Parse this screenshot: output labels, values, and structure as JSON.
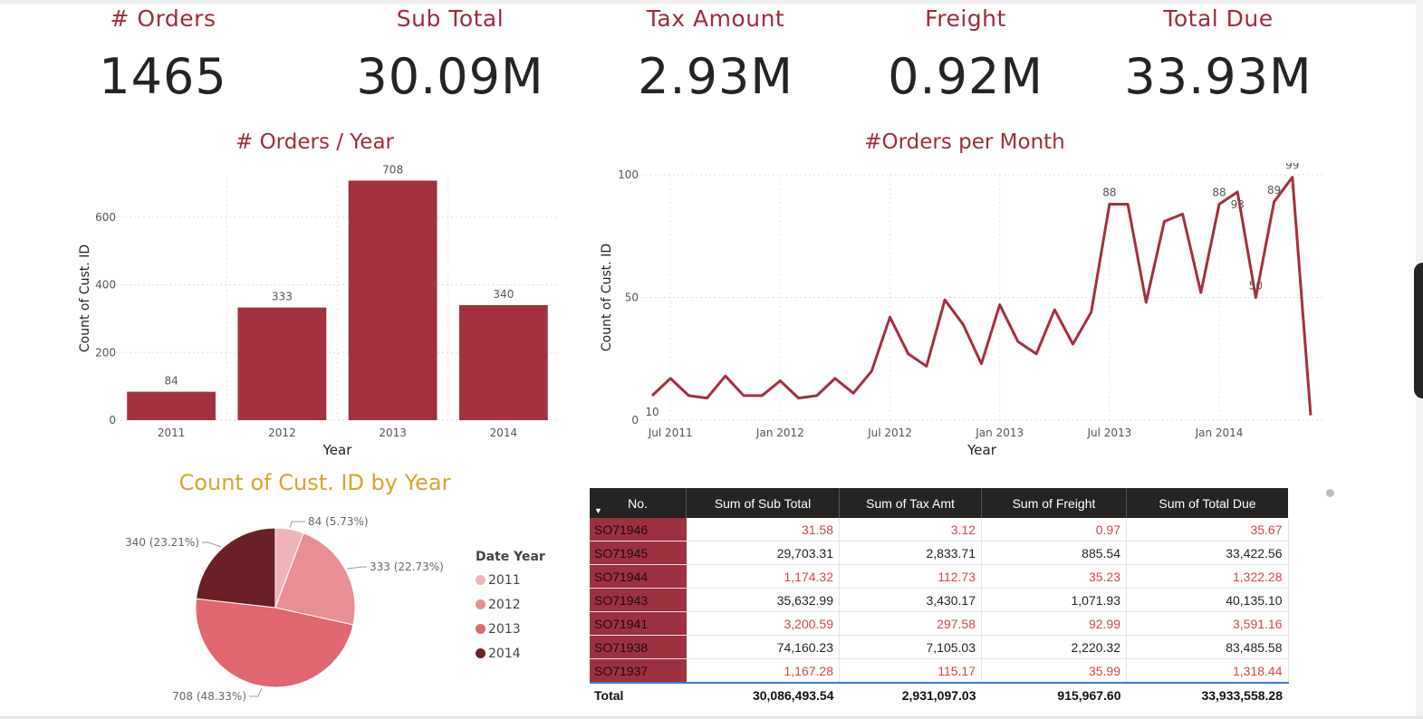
{
  "kpis": [
    {
      "label": "# Orders",
      "value": "1465"
    },
    {
      "label": "Sub Total",
      "value": "30.09M"
    },
    {
      "label": "Tax Amount",
      "value": "2.93M"
    },
    {
      "label": "Freight",
      "value": "0.92M"
    },
    {
      "label": "Total Due",
      "value": "33.93M"
    }
  ],
  "colors": {
    "accent": "#9e2d3c",
    "bar": "#a3313f",
    "pie_title": "#d4a72c",
    "kpi_value": "#252423"
  },
  "chart_data": [
    {
      "type": "bar",
      "title": "# Orders / Year",
      "categories": [
        "2011",
        "2012",
        "2013",
        "2014"
      ],
      "values": [
        84,
        333,
        708,
        340
      ],
      "xlabel": "Year",
      "ylabel": "Count of Cust. ID",
      "ylim": [
        0,
        720
      ],
      "yticks": [
        0,
        200,
        400,
        600
      ],
      "grid": true
    },
    {
      "type": "line",
      "title": "#Orders per Month",
      "xlabel": "Year",
      "ylabel": "Count of Cust. ID",
      "ylim": [
        0,
        100
      ],
      "yticks": [
        0,
        50,
        100
      ],
      "xtick_labels": [
        "Jul 2011",
        "Jan 2012",
        "Jul 2012",
        "Jan 2013",
        "Jul 2013",
        "Jan 2014"
      ],
      "x": [
        "2011-06",
        "2011-07",
        "2011-08",
        "2011-09",
        "2011-10",
        "2011-11",
        "2011-12",
        "2012-01",
        "2012-02",
        "2012-03",
        "2012-04",
        "2012-05",
        "2012-06",
        "2012-07",
        "2012-08",
        "2012-09",
        "2012-10",
        "2012-11",
        "2012-12",
        "2013-01",
        "2013-02",
        "2013-03",
        "2013-04",
        "2013-05",
        "2013-06",
        "2013-07",
        "2013-08",
        "2013-09",
        "2013-10",
        "2013-11",
        "2013-12",
        "2014-01",
        "2014-02",
        "2014-03",
        "2014-04",
        "2014-05",
        "2014-06"
      ],
      "series": [
        {
          "values": [
            10,
            17,
            10,
            9,
            18,
            10,
            10,
            16,
            9,
            10,
            17,
            11,
            20,
            42,
            27,
            22,
            49,
            39,
            23,
            47,
            32,
            27,
            45,
            31,
            44,
            88,
            88,
            48,
            81,
            84,
            52,
            88,
            93,
            50,
            89,
            99,
            2
          ]
        }
      ],
      "data_labels": [
        "10",
        "88",
        "88",
        "93",
        "50",
        "89",
        "99"
      ],
      "grid": true
    },
    {
      "type": "pie",
      "title": "Count of Cust. ID by Year",
      "legend_title": "Date Year",
      "legend_position": "right",
      "slices": [
        {
          "label": "2011",
          "value": 84,
          "text": "84 (5.73%)",
          "color": "#efb4b8"
        },
        {
          "label": "2012",
          "value": 333,
          "text": "333 (22.73%)",
          "color": "#e88e94"
        },
        {
          "label": "2013",
          "value": 708,
          "text": "708 (48.33%)",
          "color": "#e06670"
        },
        {
          "label": "2014",
          "value": 340,
          "text": "340 (23.21%)",
          "color": "#6b2026"
        }
      ]
    },
    {
      "type": "table",
      "columns": [
        "No.",
        "Sum of Sub Total",
        "Sum of Tax Amt",
        "Sum of Freight",
        "Sum of Total Due"
      ],
      "rows": [
        [
          "SO71946",
          "31.58",
          "3.12",
          "0.97",
          "35.67"
        ],
        [
          "SO71945",
          "29,703.31",
          "2,833.71",
          "885.54",
          "33,422.56"
        ],
        [
          "SO71944",
          "1,174.32",
          "112.73",
          "35.23",
          "1,322.28"
        ],
        [
          "SO71943",
          "35,632.99",
          "3,430.17",
          "1,071.93",
          "40,135.10"
        ],
        [
          "SO71941",
          "3,200.59",
          "297.58",
          "92.99",
          "3,591.16"
        ],
        [
          "SO71938",
          "74,160.23",
          "7,105.03",
          "2,220.32",
          "83,485.58"
        ],
        [
          "SO71937",
          "1,167.28",
          "115.17",
          "35.99",
          "1,318.44"
        ]
      ],
      "total": [
        "Total",
        "30,086,493.54",
        "2,931,097.03",
        "915,967.60",
        "33,933,558.28"
      ]
    }
  ]
}
